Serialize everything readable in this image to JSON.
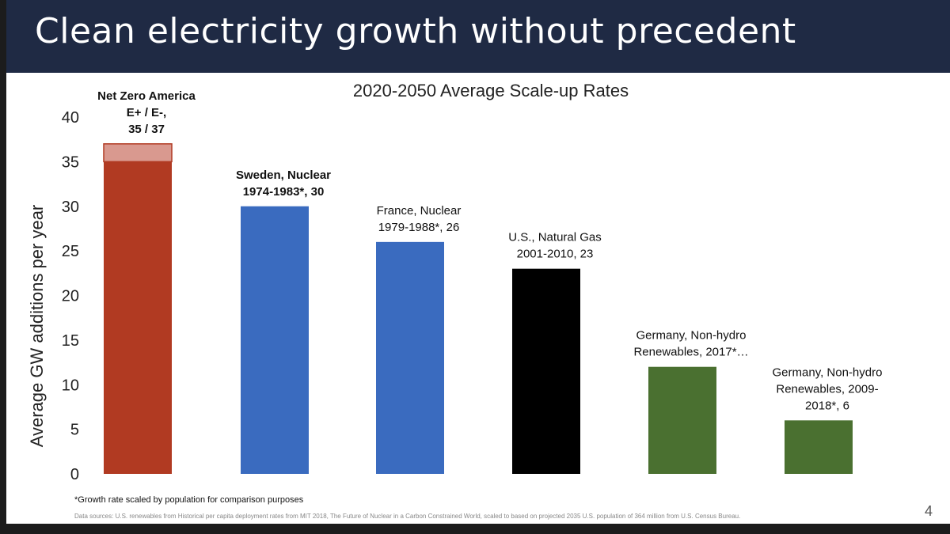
{
  "slide": {
    "title": "Clean electricity growth without precedent",
    "footnote": "*Growth rate scaled by population for comparison purposes",
    "sources": "Data sources: U.S. renewables from Historical per capita deployment rates from MIT 2018, The Future of Nuclear in a Carbon Constrained World, scaled to based on projected 2035 U.S. population of 364 million from U.S. Census Bureau.",
    "page_number": "4"
  },
  "chart_data": {
    "type": "bar",
    "title": "2020-2050 Average Scale-up Rates",
    "xlabel": "",
    "ylabel": "Average GW additions per year",
    "ylim": [
      0,
      40
    ],
    "yticks": [
      0,
      5,
      10,
      15,
      20,
      25,
      30,
      35,
      40
    ],
    "gridlines": false,
    "bars": [
      {
        "name": "Net Zero America E+ / E-",
        "value": 35,
        "stacked_upper_value": 37,
        "color": "#b13a22",
        "upper_color": "#d9998f",
        "label_lines": [
          "Net Zero America",
          "E+ / E-,",
          "35 / 37"
        ],
        "label_bold": true
      },
      {
        "name": "Sweden, Nuclear 1974-1983*",
        "value": 30,
        "color": "#3a6bbf",
        "label_lines": [
          "Sweden, Nuclear",
          "1974-1983*, 30"
        ],
        "label_bold": true
      },
      {
        "name": "France, Nuclear 1979-1988*",
        "value": 26,
        "color": "#3a6bbf",
        "label_lines": [
          "France, Nuclear",
          "1979-1988*, 26"
        ],
        "label_bold": false
      },
      {
        "name": "U.S., Natural Gas 2001-2010",
        "value": 23,
        "color": "#000000",
        "label_lines": [
          "U.S., Natural Gas",
          "2001-2010, 23"
        ],
        "label_bold": false
      },
      {
        "name": "Germany, Non-hydro Renewables, 2017*",
        "value": 12,
        "color": "#4a7030",
        "label_lines": [
          "Germany, Non-hydro",
          "Renewables, 2017*…"
        ],
        "label_bold": false
      },
      {
        "name": "Germany, Non-hydro Renewables, 2009-2018*",
        "value": 6,
        "color": "#4a7030",
        "label_lines": [
          "Germany, Non-hydro",
          "Renewables, 2009-",
          "2018*, 6"
        ],
        "label_bold": false
      }
    ]
  }
}
